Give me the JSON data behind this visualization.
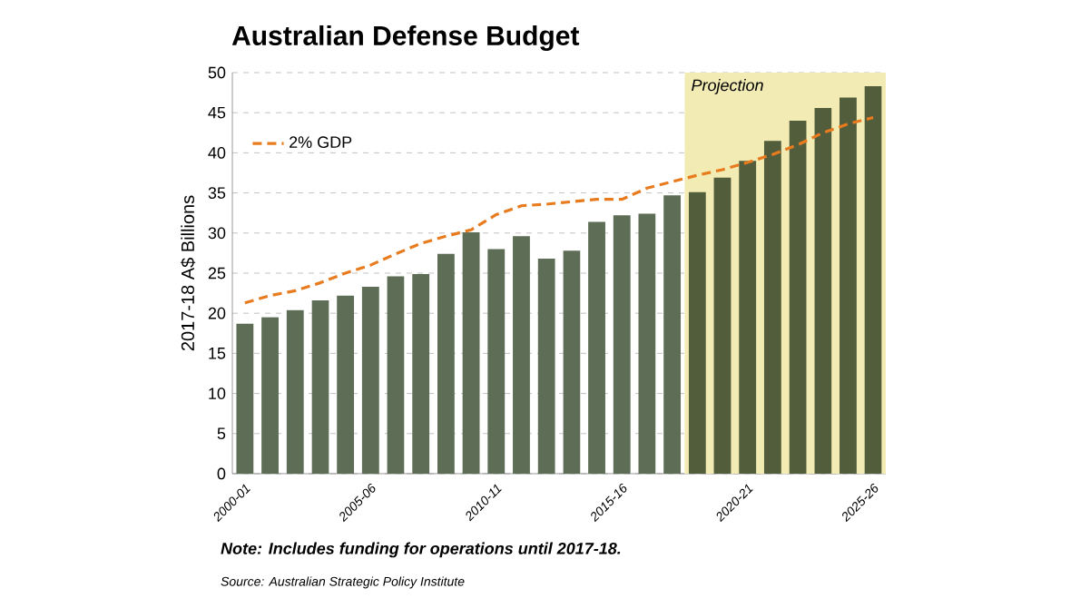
{
  "chart_data": {
    "type": "bar",
    "title": "Australian Defense Budget",
    "ylabel": "2017-18 A$ Billions",
    "categories": [
      "2000-01",
      null,
      null,
      null,
      null,
      "2005-06",
      null,
      null,
      null,
      null,
      "2010-11",
      null,
      null,
      null,
      null,
      "2015-16",
      null,
      null,
      null,
      null,
      "2020-21",
      null,
      null,
      null,
      null,
      "2025-26"
    ],
    "ylim": [
      0,
      50
    ],
    "yticks": [
      0,
      5,
      10,
      15,
      20,
      25,
      30,
      35,
      40,
      45,
      50
    ],
    "series": [
      {
        "values": [
          18.7,
          19.5,
          20.4,
          21.6,
          22.2,
          23.3,
          24.6,
          24.9,
          27.4,
          30.1,
          28.0,
          29.6,
          26.8,
          27.8,
          31.4,
          32.2,
          32.4,
          34.7,
          35.1,
          36.9,
          39.0,
          41.5,
          44.0,
          45.6,
          46.9,
          48.3
        ],
        "colors": [
          "#5e6e56",
          "#5e6e56",
          "#5e6e56",
          "#5e6e56",
          "#5e6e56",
          "#5e6e56",
          "#5e6e56",
          "#5e6e56",
          "#5e6e56",
          "#5e6e56",
          "#5e6e56",
          "#5e6e56",
          "#5e6e56",
          "#5e6e56",
          "#5e6e56",
          "#5e6e56",
          "#5e6e56",
          "#5e6e56",
          "#525d3b",
          "#525d3b",
          "#525d3b",
          "#525d3b",
          "#525d3b",
          "#525d3b",
          "#525d3b",
          "#525d3b"
        ]
      },
      {
        "type": "line",
        "name": "2% GDP",
        "color": "#e87b1e",
        "line_style": "dashed",
        "values": [
          21.3,
          22.2,
          22.8,
          23.8,
          25.0,
          26.0,
          27.4,
          28.7,
          29.6,
          30.4,
          32.3,
          33.4,
          33.6,
          33.9,
          34.2,
          34.2,
          35.6,
          36.4,
          37.2,
          37.9,
          38.8,
          39.8,
          41.0,
          42.5,
          43.6,
          44.4
        ]
      }
    ],
    "grid": "y",
    "legend": "top left",
    "annotations": [
      "Projection",
      "Note: Includes funding for operations until 2017-18.",
      "Source: Australian Strategic Policy Institute"
    ]
  }
}
